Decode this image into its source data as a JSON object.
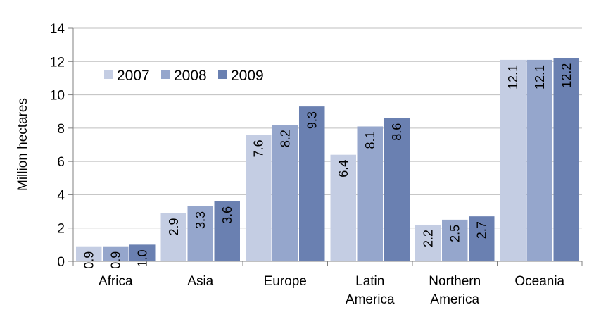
{
  "chart_data": {
    "type": "bar",
    "categories": [
      [
        "Africa"
      ],
      [
        "Asia"
      ],
      [
        "Europe"
      ],
      [
        "Latin",
        "America"
      ],
      [
        "Northern",
        "America"
      ],
      [
        "Oceania"
      ]
    ],
    "series": [
      {
        "name": "2007",
        "color": "#c4cde3",
        "values": [
          0.9,
          2.9,
          7.6,
          6.4,
          2.2,
          12.1
        ],
        "labels": [
          "0.9",
          "2.9",
          "7.6",
          "6.4",
          "2.2",
          "12.1"
        ]
      },
      {
        "name": "2008",
        "color": "#95a6cc",
        "values": [
          0.9,
          3.3,
          8.2,
          8.1,
          2.5,
          12.1
        ],
        "labels": [
          "0.9",
          "3.3",
          "8.2",
          "8.1",
          "2.5",
          "12.1"
        ]
      },
      {
        "name": "2009",
        "color": "#6a80b1",
        "values": [
          1.0,
          3.6,
          9.3,
          8.6,
          2.7,
          12.2
        ],
        "labels": [
          "1.0",
          "3.6",
          "9.3",
          "8.6",
          "2.7",
          "12.2"
        ]
      }
    ],
    "ylabel": "Million hectares",
    "xlabel": "",
    "ylim": [
      0,
      14
    ],
    "yticks": [
      "0",
      "2",
      "4",
      "6",
      "8",
      "10",
      "12",
      "14"
    ],
    "grid": true,
    "legend_position": "top-left"
  }
}
